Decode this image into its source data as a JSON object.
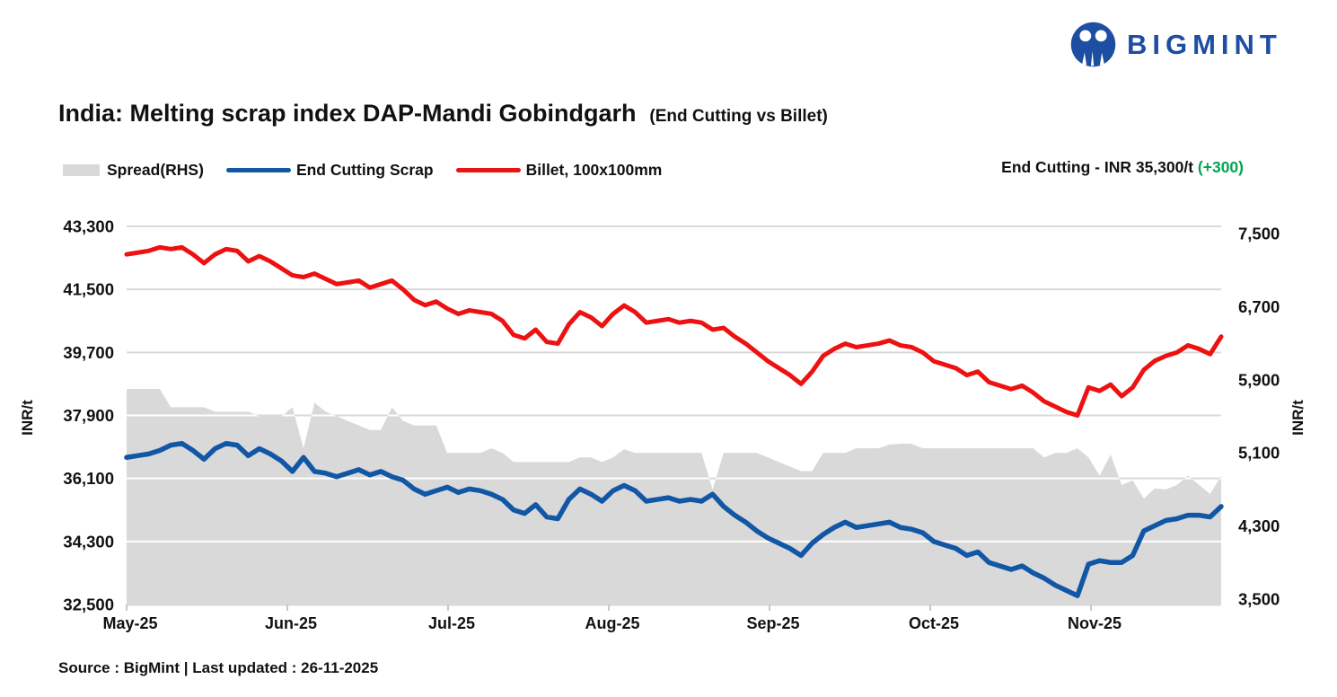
{
  "brand": {
    "name": "BIGMINT",
    "logo_color": "#1d4ea1"
  },
  "title": {
    "main": "India: Melting scrap index DAP-Mandi Gobindgarh",
    "sub": "(End Cutting vs Billet)"
  },
  "legend": [
    {
      "label": "Spread(RHS)",
      "swatch": "area",
      "color": "#d9d9d9"
    },
    {
      "label": "End Cutting Scrap",
      "swatch": "line",
      "color": "#1157a6"
    },
    {
      "label": "Billet, 100x100mm",
      "swatch": "line",
      "color": "#ee1111"
    }
  ],
  "annotation": {
    "label": "End Cutting - INR 35,300/t",
    "change": "(+300)",
    "change_color": "#00a651"
  },
  "source": "Source : BigMint | Last updated : 26-11-2025",
  "chart_data": {
    "type": "line+area",
    "title": "India: Melting scrap index DAP-Mandi Gobindgarh (End Cutting vs Billet)",
    "x_axis": {
      "labels": [
        "May-25",
        "Jun-25",
        "Jul-25",
        "Aug-25",
        "Sep-25",
        "Oct-25",
        "Nov-25"
      ]
    },
    "left_axis": {
      "title": "INR/t",
      "min": 32500,
      "max": 43300,
      "tick_step": 1800,
      "ticks": [
        "43,300",
        "41,500",
        "39,700",
        "37,900",
        "36,100",
        "34,300",
        "32,500"
      ]
    },
    "right_axis": {
      "title": "INR/t",
      "min": 3500,
      "max": 7500,
      "tick_step": 800,
      "ticks": [
        "7,500",
        "6,700",
        "5,900",
        "5,100",
        "4,300",
        "3,500"
      ]
    },
    "grid": true,
    "legend_position": "top-left",
    "series": [
      {
        "name": "End Cutting Scrap",
        "axis": "left",
        "color": "#1157a6",
        "latest_label": "INR 35,300/t",
        "latest_change": 300,
        "values": [
          36700,
          36750,
          36800,
          36900,
          37050,
          37100,
          36900,
          36650,
          36950,
          37100,
          37050,
          36750,
          36950,
          36800,
          36600,
          36300,
          36700,
          36300,
          36250,
          36150,
          36250,
          36350,
          36200,
          36300,
          36150,
          36050,
          35800,
          35650,
          35750,
          35850,
          35700,
          35800,
          35750,
          35650,
          35500,
          35200,
          35100,
          35350,
          35000,
          34950,
          35500,
          35800,
          35650,
          35450,
          35750,
          35900,
          35750,
          35450,
          35500,
          35550,
          35450,
          35500,
          35450,
          35650,
          35300,
          35050,
          34850,
          34600,
          34400,
          34250,
          34100,
          33900,
          34250,
          34500,
          34700,
          34850,
          34700,
          34750,
          34800,
          34850,
          34700,
          34650,
          34550,
          34300,
          34200,
          34100,
          33900,
          34000,
          33700,
          33600,
          33500,
          33600,
          33400,
          33250,
          33050,
          32900,
          32750,
          33650,
          33750,
          33700,
          33700,
          33900,
          34600,
          34750,
          34900,
          34950,
          35050,
          35050,
          35000,
          35300
        ]
      },
      {
        "name": "Billet, 100x100mm",
        "axis": "left",
        "color": "#ee1111",
        "values": [
          42500,
          42550,
          42600,
          42700,
          42650,
          42700,
          42500,
          42250,
          42500,
          42650,
          42600,
          42300,
          42450,
          42300,
          42100,
          41900,
          41850,
          41950,
          41800,
          41650,
          41700,
          41750,
          41550,
          41650,
          41750,
          41500,
          41200,
          41050,
          41150,
          40950,
          40800,
          40900,
          40850,
          40800,
          40600,
          40200,
          40100,
          40350,
          40000,
          39950,
          40500,
          40850,
          40700,
          40450,
          40800,
          41040,
          40850,
          40550,
          40600,
          40650,
          40550,
          40600,
          40550,
          40350,
          40400,
          40150,
          39950,
          39700,
          39450,
          39250,
          39050,
          38800,
          39150,
          39600,
          39800,
          39950,
          39850,
          39900,
          39950,
          40040,
          39900,
          39850,
          39700,
          39450,
          39350,
          39250,
          39050,
          39150,
          38850,
          38750,
          38650,
          38750,
          38550,
          38300,
          38150,
          38000,
          37900,
          38700,
          38600,
          38780,
          38450,
          38700,
          39200,
          39460,
          39600,
          39700,
          39900,
          39800,
          39650,
          40150
        ]
      },
      {
        "name": "Spread(RHS)",
        "axis": "right",
        "color": "#d9d9d9",
        "derived": "billet_minus_scrap"
      }
    ]
  }
}
